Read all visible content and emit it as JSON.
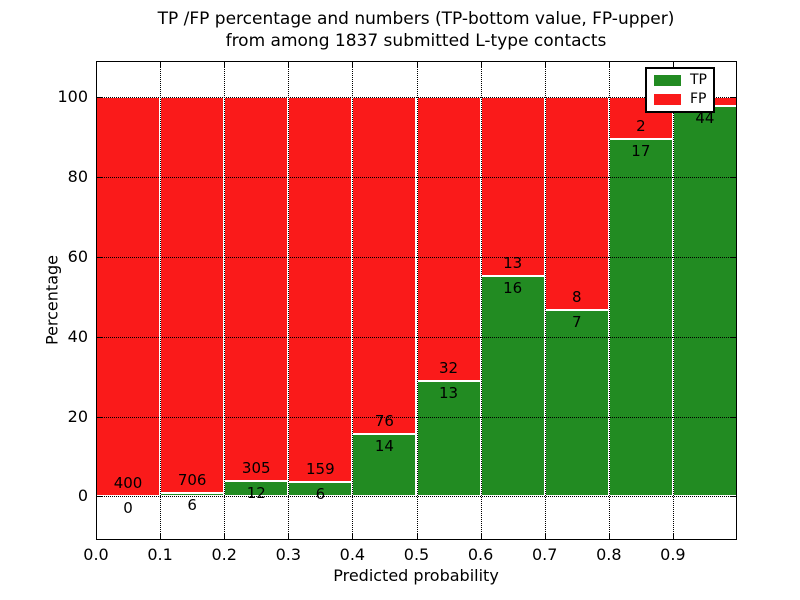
{
  "title": {
    "line1": "TP /FP percentage and numbers (TP-bottom value, FP-upper)",
    "line2": "from among 1837 submitted L-type contacts"
  },
  "axes": {
    "xlabel": "Predicted probability",
    "ylabel": "Percentage"
  },
  "legend": {
    "items": [
      {
        "label": "TP",
        "color": "#228B22"
      },
      {
        "label": "FP",
        "color": "#FA1A1A"
      }
    ]
  },
  "chart_data": {
    "type": "bar",
    "stacked": true,
    "title": "TP /FP percentage and numbers (TP-bottom value, FP-upper)\nfrom among 1837 submitted L-type contacts",
    "xlabel": "Predicted probability",
    "ylabel": "Percentage",
    "xlim": [
      0.0,
      1.0
    ],
    "ylim": [
      -10.9,
      109.1
    ],
    "x_tick_labels": [
      "0.0",
      "0.1",
      "0.2",
      "0.3",
      "0.4",
      "0.5",
      "0.6",
      "0.7",
      "0.8",
      "0.9"
    ],
    "y_ticks": [
      0,
      20,
      40,
      60,
      80,
      100
    ],
    "grid": "dotted",
    "legend_position": "upper-right",
    "series_colors": {
      "TP": "#228B22",
      "FP": "#FA1A1A"
    },
    "bins": [
      {
        "x0": 0.0,
        "x1": 0.1,
        "tp_count": 0,
        "fp_count": 400,
        "tp_pct": 0.0
      },
      {
        "x0": 0.1,
        "x1": 0.2,
        "tp_count": 6,
        "fp_count": 706,
        "tp_pct": 0.84
      },
      {
        "x0": 0.2,
        "x1": 0.3,
        "tp_count": 12,
        "fp_count": 305,
        "tp_pct": 3.79
      },
      {
        "x0": 0.3,
        "x1": 0.4,
        "tp_count": 6,
        "fp_count": 159,
        "tp_pct": 3.64
      },
      {
        "x0": 0.4,
        "x1": 0.5,
        "tp_count": 14,
        "fp_count": 76,
        "tp_pct": 15.56
      },
      {
        "x0": 0.5,
        "x1": 0.6,
        "tp_count": 13,
        "fp_count": 32,
        "tp_pct": 28.89
      },
      {
        "x0": 0.6,
        "x1": 0.7,
        "tp_count": 16,
        "fp_count": 13,
        "tp_pct": 55.17
      },
      {
        "x0": 0.7,
        "x1": 0.8,
        "tp_count": 7,
        "fp_count": 8,
        "tp_pct": 46.67
      },
      {
        "x0": 0.8,
        "x1": 0.9,
        "tp_count": 17,
        "fp_count": 2,
        "tp_pct": 89.47
      },
      {
        "x0": 0.9,
        "x1": 1.0,
        "tp_count": 44,
        "fp_count": null,
        "tp_pct": 97.78
      }
    ]
  }
}
